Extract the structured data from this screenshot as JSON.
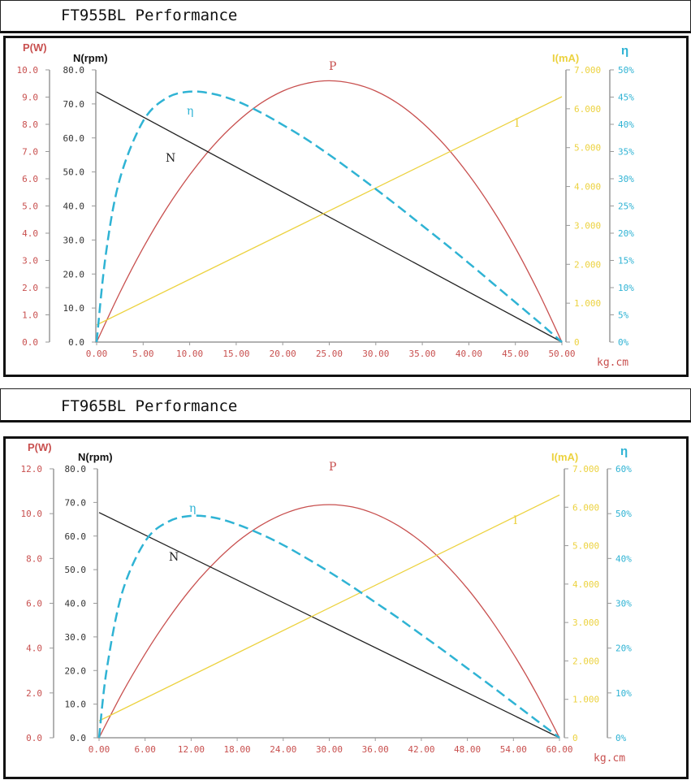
{
  "colors": {
    "P": "#c8504f",
    "N": "#222222",
    "I": "#ecd23f",
    "eta": "#2fb3d4",
    "axis": "#999999"
  },
  "chart_data": [
    {
      "type": "line",
      "title": "FT955BL Performance",
      "xlabel": "kg.cm",
      "xlim": [
        0,
        50
      ],
      "x_ticks": [
        "0.00",
        "5.00",
        "10.00",
        "15.00",
        "20.00",
        "25.00",
        "30.00",
        "35.00",
        "40.00",
        "45.00",
        "50.00"
      ],
      "axes": {
        "P": {
          "label": "P(W)",
          "ylim": [
            0,
            10
          ],
          "ticks": [
            "0.0",
            "1.0",
            "2.0",
            "3.0",
            "4.0",
            "5.0",
            "6.0",
            "7.0",
            "8.0",
            "9.0",
            "10.0"
          ]
        },
        "N": {
          "label": "N(rpm)",
          "ylim": [
            0,
            80
          ],
          "ticks": [
            "0.0",
            "10.0",
            "20.0",
            "30.0",
            "40.0",
            "50.0",
            "60.0",
            "70.0",
            "80.0"
          ]
        },
        "I": {
          "label": "I(mA)",
          "ylim": [
            0,
            7
          ],
          "ticks": [
            "0",
            "1.000",
            "2.000",
            "3.000",
            "4.000",
            "5.000",
            "6.000",
            "7.000"
          ]
        },
        "eta": {
          "label": "η",
          "ylim": [
            0,
            50
          ],
          "ticks": [
            "0%",
            "5%",
            "10%",
            "15%",
            "20%",
            "25%",
            "30%",
            "35%",
            "40%",
            "45%",
            "50%"
          ]
        }
      },
      "series": [
        {
          "name": "P",
          "axis": "P",
          "label": "P",
          "x": [
            0,
            2.5,
            5,
            7.5,
            10,
            12.5,
            15,
            17.5,
            20,
            22.5,
            25,
            27.5,
            30,
            32.5,
            35,
            37.5,
            40,
            42.5,
            45,
            47.5,
            50
          ],
          "y": [
            0,
            1.82,
            3.46,
            4.9,
            6.14,
            7.2,
            8.06,
            8.74,
            9.22,
            9.5,
            9.6,
            9.5,
            9.22,
            8.74,
            8.06,
            7.2,
            6.14,
            4.9,
            3.46,
            1.82,
            0
          ]
        },
        {
          "name": "N",
          "axis": "N",
          "label": "N",
          "x": [
            0,
            50
          ],
          "y": [
            73.5,
            0
          ]
        },
        {
          "name": "I",
          "axis": "I",
          "label": "I",
          "x": [
            0,
            50
          ],
          "y": [
            0.44,
            6.31
          ]
        },
        {
          "name": "eta",
          "axis": "eta",
          "label": "η",
          "x": [
            0,
            1,
            2.5,
            5,
            7.5,
            10,
            12.5,
            15,
            17.5,
            20,
            22.5,
            25,
            27.5,
            30,
            32.5,
            35,
            37.5,
            40,
            42.5,
            45,
            47.5,
            50
          ],
          "y": [
            0,
            16.3,
            30.0,
            40.6,
            44.8,
            46.0,
            45.6,
            44.3,
            42.3,
            39.9,
            37.3,
            34.4,
            31.3,
            28.1,
            24.8,
            21.4,
            18.0,
            14.5,
            10.9,
            7.3,
            3.7,
            0
          ]
        }
      ]
    },
    {
      "type": "line",
      "title": "FT965BL Performance",
      "xlabel": "kg.cm",
      "xlim": [
        0,
        60
      ],
      "x_ticks": [
        "0.00",
        "6.00",
        "12.00",
        "18.00",
        "24.00",
        "30.00",
        "36.00",
        "42.00",
        "48.00",
        "54.00",
        "60.00"
      ],
      "axes": {
        "P": {
          "label": "P(W)",
          "ylim": [
            0,
            12
          ],
          "ticks": [
            "0.0",
            "2.0",
            "4.0",
            "6.0",
            "8.0",
            "10.0",
            "12.0"
          ]
        },
        "N": {
          "label": "N(rpm)",
          "ylim": [
            0,
            80
          ],
          "ticks": [
            "0.0",
            "10.0",
            "20.0",
            "30.0",
            "40.0",
            "50.0",
            "60.0",
            "70.0",
            "80.0"
          ]
        },
        "I": {
          "label": "I(mA)",
          "ylim": [
            0,
            7
          ],
          "ticks": [
            "0",
            "1.000",
            "2.000",
            "3.000",
            "4.000",
            "5.000",
            "6.000",
            "7.000"
          ]
        },
        "eta": {
          "label": "η",
          "ylim": [
            0,
            60
          ],
          "ticks": [
            "0%",
            "10%",
            "20%",
            "30%",
            "40%",
            "50%",
            "60%"
          ]
        }
      },
      "series": [
        {
          "name": "P",
          "axis": "P",
          "label": "P",
          "x": [
            0,
            3,
            6,
            9,
            12,
            15,
            18,
            21,
            24,
            27,
            30,
            33,
            36,
            39,
            42,
            45,
            48,
            51,
            54,
            57,
            60
          ],
          "y": [
            0,
            1.98,
            3.74,
            5.3,
            6.66,
            7.8,
            8.74,
            9.46,
            9.98,
            10.3,
            10.4,
            10.3,
            9.98,
            9.46,
            8.74,
            7.8,
            6.66,
            5.3,
            3.74,
            1.98,
            0
          ]
        },
        {
          "name": "N",
          "axis": "N",
          "label": "N",
          "x": [
            0,
            60
          ],
          "y": [
            67.0,
            0
          ]
        },
        {
          "name": "I",
          "axis": "I",
          "label": "I",
          "x": [
            0,
            60
          ],
          "y": [
            0.44,
            6.32
          ]
        },
        {
          "name": "eta",
          "axis": "eta",
          "label": "η",
          "x": [
            0,
            1,
            3,
            6,
            9,
            12,
            15,
            18,
            21,
            24,
            27,
            30,
            33,
            36,
            39,
            42,
            45,
            48,
            51,
            54,
            57,
            60
          ],
          "y": [
            0,
            15.2,
            32.3,
            43.8,
            48.2,
            49.5,
            49.1,
            47.6,
            45.5,
            43.0,
            40.1,
            37.0,
            33.7,
            30.2,
            26.7,
            23.0,
            19.3,
            15.5,
            11.7,
            7.8,
            3.9,
            0
          ]
        }
      ]
    }
  ]
}
